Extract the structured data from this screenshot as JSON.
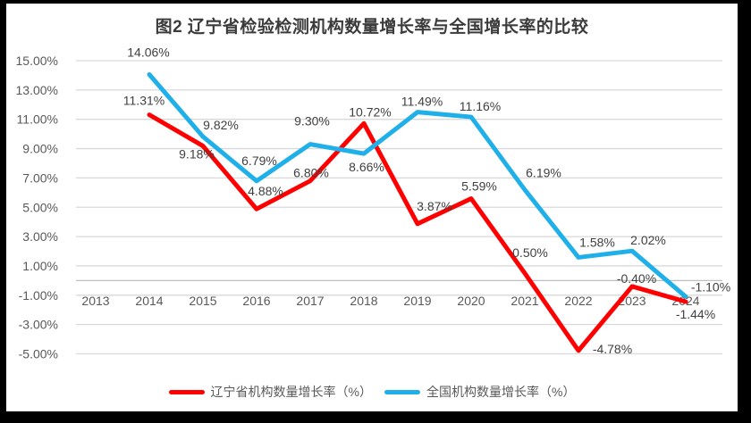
{
  "frame": {
    "background": "#000000",
    "chart_background": "#FFFFFF"
  },
  "title": "图2 辽宁省检验检测机构数量增长率与全国增长率的比较",
  "chart_data": {
    "type": "line",
    "categories": [
      "2013",
      "2014",
      "2015",
      "2016",
      "2017",
      "2018",
      "2019",
      "2020",
      "2021",
      "2022",
      "2023",
      "2024"
    ],
    "series": [
      {
        "name": "辽宁省机构数量增长率（%）",
        "color": "#FE0000",
        "values": [
          null,
          11.31,
          9.18,
          4.88,
          6.8,
          10.72,
          3.87,
          5.59,
          0.5,
          -4.78,
          -0.4,
          -1.44
        ],
        "label_offsets": [
          null,
          [
            -6,
            -16
          ],
          [
            -7,
            9
          ],
          [
            10,
            -20
          ],
          [
            1,
            -9
          ],
          [
            7,
            -13
          ],
          [
            19,
            -20
          ],
          [
            9,
            -14
          ],
          [
            6,
            -23
          ],
          [
            38,
            -2
          ],
          [
            5,
            -9
          ],
          [
            11,
            14
          ]
        ]
      },
      {
        "name": "全国机构数量增长率（%）",
        "color": "#1FB0EA",
        "values": [
          null,
          14.06,
          9.82,
          6.79,
          9.3,
          8.66,
          11.49,
          11.16,
          6.19,
          1.58,
          2.02,
          -1.1
        ],
        "label_offsets": [
          null,
          [
            -1,
            -25
          ],
          [
            20,
            -13
          ],
          [
            3,
            -23
          ],
          [
            2,
            -26
          ],
          [
            3,
            15
          ],
          [
            5,
            -12
          ],
          [
            10,
            -12
          ],
          [
            21,
            -19
          ],
          [
            21,
            -17
          ],
          [
            18,
            -12
          ],
          [
            28,
            -11
          ]
        ]
      }
    ],
    "ylim": [
      -5,
      15
    ],
    "yticks": [
      15,
      13,
      11,
      9,
      7,
      5,
      3,
      1,
      -1,
      -3,
      -5
    ],
    "ytick_format": "percent-2dp",
    "grid": true,
    "legend_position": "bottom",
    "line_width": 5,
    "grid_color": "#D9D9D9",
    "zero_line_color": "#BFBFBF",
    "axis_label_color": "#595959",
    "data_label_color": "#404040",
    "axis_font_size": 14,
    "data_label_font_size": 14
  }
}
